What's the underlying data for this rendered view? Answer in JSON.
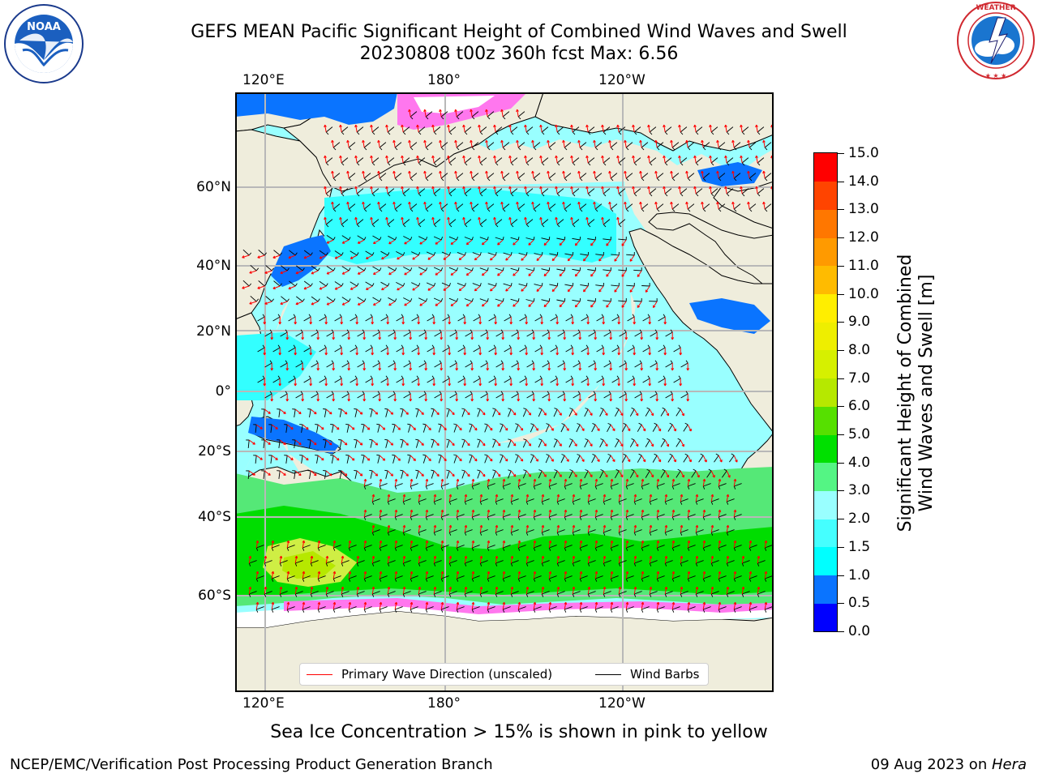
{
  "header": {
    "title_line1": "GEFS MEAN Pacific Significant Height of Combined Wind Waves and Swell",
    "title_line2": "20230808 t00z 360h fcst   Max: 6.56"
  },
  "logos": {
    "left": {
      "name": "NOAA",
      "ring_text": "NATIONAL OCEANIC AND ATMOSPHERIC ADMINISTRATION · U.S. DEPARTMENT OF COMMERCE"
    },
    "right": {
      "name": "NATIONAL WEATHER SERVICE"
    }
  },
  "map": {
    "lon_labels_top": [
      "120°E",
      "180°",
      "120°W"
    ],
    "lon_labels_bottom": [
      "120°E",
      "180°",
      "120°W"
    ],
    "lat_labels": [
      "60°N",
      "40°N",
      "20°N",
      "0°",
      "20°S",
      "40°S",
      "60°S"
    ],
    "colors": {
      "land": "#efeddc",
      "ocean_calm": "#99ffff",
      "ocean_mid": "#33ffff",
      "ocean_high": "#55e877",
      "ocean_storm": "#00cc00",
      "arrow": "#ff0000",
      "barb": "#000000"
    }
  },
  "legend": {
    "items": [
      {
        "label": "Primary Wave Direction (unscaled)",
        "color": "#ff0000"
      },
      {
        "label": "Wind Barbs",
        "color": "#000000"
      }
    ]
  },
  "colorbar": {
    "title_line1": "Significant Height of Combined",
    "title_line2": "Wind Waves and Swell [m]",
    "tick_labels": [
      "0.0",
      "0.5",
      "1.0",
      "1.5",
      "2.0",
      "3.0",
      "4.0",
      "5.0",
      "6.0",
      "7.0",
      "8.0",
      "9.0",
      "10.0",
      "11.0",
      "12.0",
      "13.0",
      "14.0",
      "15.0"
    ],
    "colors": [
      "#0000ff",
      "#0a74ff",
      "#00ffff",
      "#45ffff",
      "#99ffff",
      "#54f584",
      "#00e000",
      "#56e000",
      "#b6e800",
      "#d6f000",
      "#eeee00",
      "#ffee00",
      "#ffbb00",
      "#ff9a00",
      "#ff7700",
      "#ff4400",
      "#ff0000"
    ]
  },
  "caption": "Sea Ice Concentration > 15% is shown in pink to yellow",
  "footer": {
    "left": "NCEP/EMC/Verification Post Processing Product Generation Branch",
    "date": "09 Aug 2023 on ",
    "host": "Hera"
  }
}
